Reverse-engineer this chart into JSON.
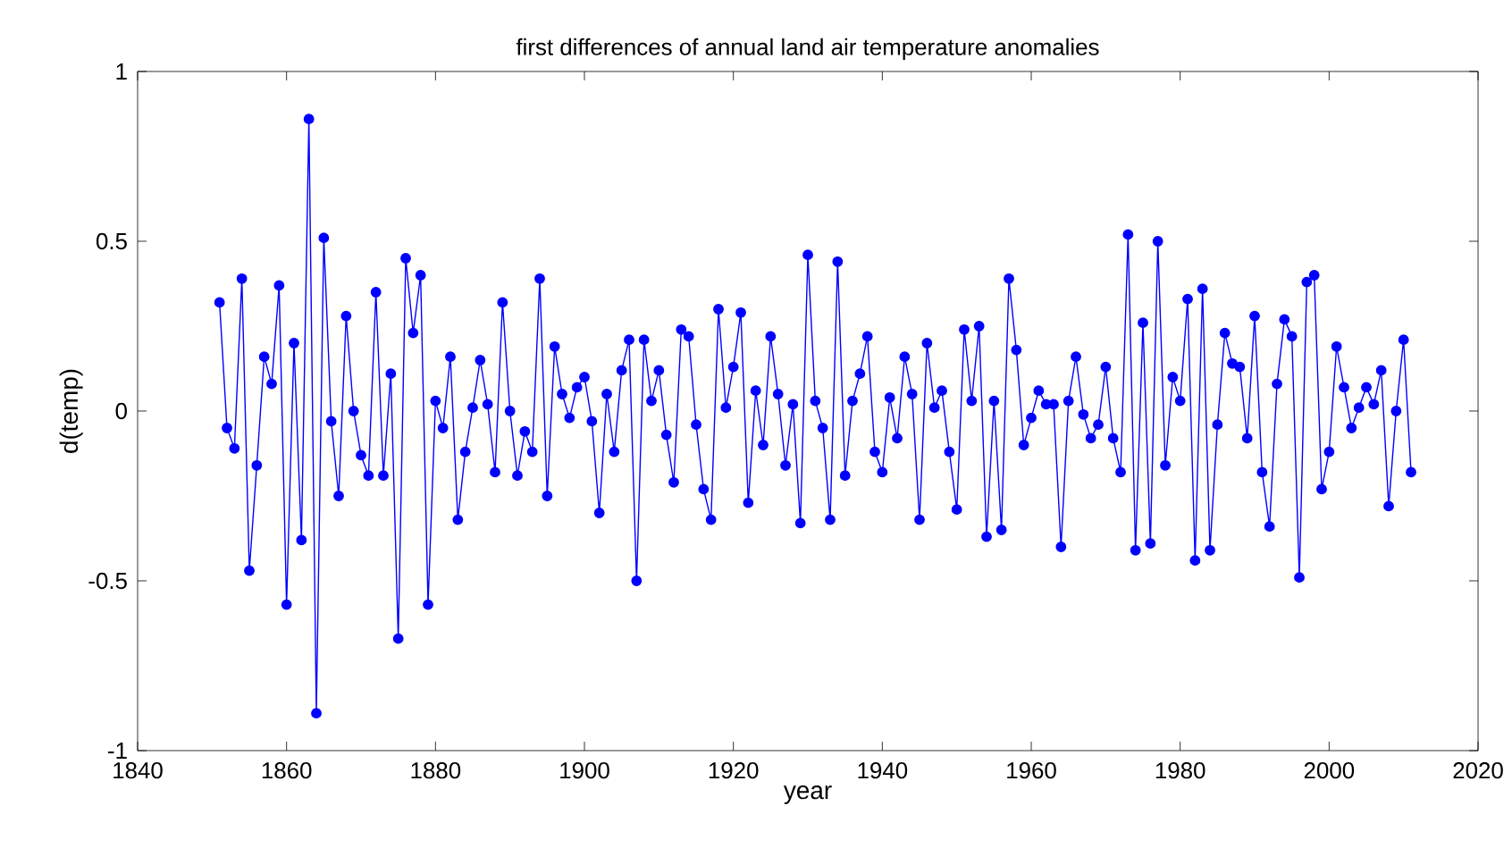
{
  "chart_data": {
    "type": "line",
    "title": "first differences of annual land air temperature anomalies",
    "xlabel": "year",
    "ylabel": "d(temp)",
    "x": [
      1851,
      1852,
      1853,
      1854,
      1855,
      1856,
      1857,
      1858,
      1859,
      1860,
      1861,
      1862,
      1863,
      1864,
      1865,
      1866,
      1867,
      1868,
      1869,
      1870,
      1871,
      1872,
      1873,
      1874,
      1875,
      1876,
      1877,
      1878,
      1879,
      1880,
      1881,
      1882,
      1883,
      1884,
      1885,
      1886,
      1887,
      1888,
      1889,
      1890,
      1891,
      1892,
      1893,
      1894,
      1895,
      1896,
      1897,
      1898,
      1899,
      1900,
      1901,
      1902,
      1903,
      1904,
      1905,
      1906,
      1907,
      1908,
      1909,
      1910,
      1911,
      1912,
      1913,
      1914,
      1915,
      1916,
      1917,
      1918,
      1919,
      1920,
      1921,
      1922,
      1923,
      1924,
      1925,
      1926,
      1927,
      1928,
      1929,
      1930,
      1931,
      1932,
      1933,
      1934,
      1935,
      1936,
      1937,
      1938,
      1939,
      1940,
      1941,
      1942,
      1943,
      1944,
      1945,
      1946,
      1947,
      1948,
      1949,
      1950,
      1951,
      1952,
      1953,
      1954,
      1955,
      1956,
      1957,
      1958,
      1959,
      1960,
      1961,
      1962,
      1963,
      1964,
      1965,
      1966,
      1967,
      1968,
      1969,
      1970,
      1971,
      1972,
      1973,
      1974,
      1975,
      1976,
      1977,
      1978,
      1979,
      1980,
      1981,
      1982,
      1983,
      1984,
      1985,
      1986,
      1987,
      1988,
      1989,
      1990,
      1991,
      1992,
      1993,
      1994,
      1995,
      1996,
      1997,
      1998,
      1999,
      2000,
      2001,
      2002,
      2003,
      2004,
      2005,
      2006,
      2007,
      2008,
      2009,
      2010,
      2011
    ],
    "series": [
      {
        "color": "#0000ff",
        "values": [
          0.32,
          -0.05,
          -0.11,
          0.39,
          -0.47,
          -0.16,
          0.16,
          0.08,
          0.37,
          -0.57,
          0.2,
          -0.38,
          0.86,
          -0.89,
          0.51,
          -0.03,
          -0.25,
          0.28,
          0.0,
          -0.13,
          -0.19,
          0.35,
          -0.19,
          0.11,
          -0.67,
          0.45,
          0.23,
          0.4,
          -0.57,
          0.03,
          -0.05,
          0.16,
          -0.32,
          -0.12,
          0.01,
          0.15,
          0.02,
          -0.18,
          0.32,
          0.0,
          -0.19,
          -0.06,
          -0.12,
          0.39,
          -0.25,
          0.19,
          0.05,
          -0.02,
          0.07,
          0.1,
          -0.03,
          -0.3,
          0.05,
          -0.12,
          0.12,
          0.21,
          -0.5,
          0.21,
          0.03,
          0.12,
          -0.07,
          -0.21,
          0.24,
          0.22,
          -0.04,
          -0.23,
          -0.32,
          0.3,
          0.01,
          0.13,
          0.29,
          -0.27,
          0.06,
          -0.1,
          0.22,
          0.05,
          -0.16,
          0.02,
          -0.33,
          0.46,
          0.03,
          -0.05,
          -0.32,
          0.44,
          -0.19,
          0.03,
          0.11,
          0.22,
          -0.12,
          -0.18,
          0.04,
          -0.08,
          0.16,
          0.05,
          -0.32,
          0.2,
          0.01,
          0.06,
          -0.12,
          -0.29,
          0.24,
          0.03,
          0.25,
          -0.37,
          0.03,
          -0.35,
          0.39,
          0.18,
          -0.1,
          -0.02,
          0.06,
          0.02,
          0.02,
          -0.4,
          0.03,
          0.16,
          -0.01,
          -0.08,
          -0.04,
          0.13,
          -0.08,
          -0.18,
          0.52,
          -0.41,
          0.26,
          -0.39,
          0.5,
          -0.16,
          0.1,
          0.03,
          0.33,
          -0.44,
          0.36,
          -0.41,
          -0.04,
          0.23,
          0.14,
          0.13,
          -0.08,
          0.28,
          -0.18,
          -0.34,
          0.08,
          0.27,
          0.22,
          -0.49,
          0.38,
          0.4,
          -0.23,
          -0.12,
          0.19,
          0.07,
          -0.05,
          0.01,
          0.07,
          0.02,
          0.12,
          -0.28,
          0.0,
          0.21,
          -0.18
        ]
      }
    ],
    "xlim": [
      1840,
      2020
    ],
    "xticks": [
      1840,
      1860,
      1880,
      1900,
      1920,
      1940,
      1960,
      1980,
      2000,
      2020
    ],
    "ylim": [
      -1,
      1
    ],
    "yticks": [
      -1,
      -0.5,
      0,
      0.5,
      1
    ],
    "grid": false,
    "marker": "circle",
    "line_style": "solid"
  }
}
